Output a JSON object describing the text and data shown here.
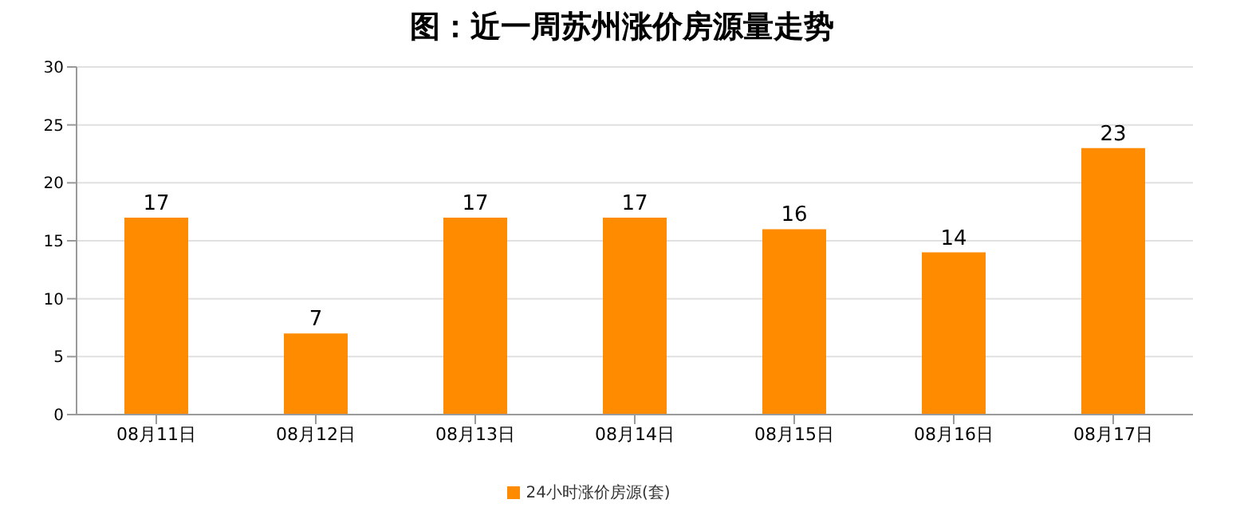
{
  "chart_data": {
    "type": "bar",
    "title": "图：近一周苏州涨价房源量走势",
    "categories": [
      "08月11日",
      "08月12日",
      "08月13日",
      "08月14日",
      "08月15日",
      "08月16日",
      "08月17日"
    ],
    "series": [
      {
        "name": "24小时涨价房源(套)",
        "color": "#ff8c00",
        "values": [
          17,
          7,
          17,
          17,
          16,
          14,
          23
        ]
      }
    ],
    "ylim": [
      0,
      30
    ],
    "yticks": [
      0,
      5,
      10,
      15,
      20,
      25,
      30
    ],
    "grid": "y",
    "legend": "bottom",
    "data_labels": true
  }
}
